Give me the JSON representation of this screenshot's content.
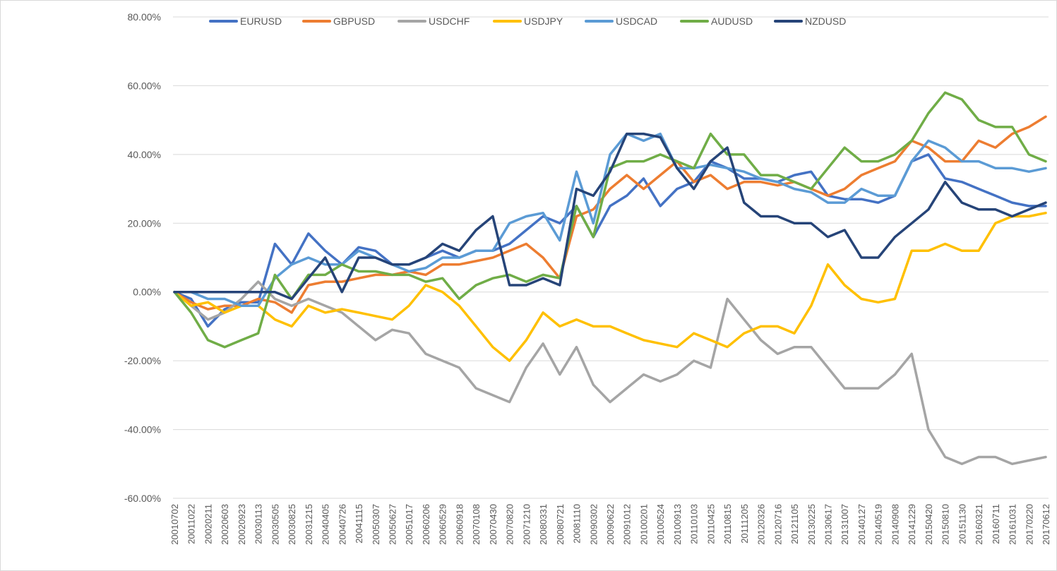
{
  "chart_data": {
    "type": "line",
    "title": "",
    "xlabel": "",
    "ylabel": "",
    "ylim": [
      -60,
      80
    ],
    "y_ticks": [
      "-60.00%",
      "-40.00%",
      "-20.00%",
      "0.00%",
      "20.00%",
      "40.00%",
      "60.00%",
      "80.00%"
    ],
    "y_tick_values": [
      -60,
      -40,
      -20,
      0,
      20,
      40,
      60,
      80
    ],
    "grid": true,
    "legend_placement": "top",
    "x": [
      "20010702",
      "20011022",
      "20020211",
      "20020603",
      "20020923",
      "20030113",
      "20030505",
      "20030825",
      "20031215",
      "20040405",
      "20040726",
      "20041115",
      "20050307",
      "20050627",
      "20051017",
      "20060206",
      "20060529",
      "20060918",
      "20070108",
      "20070430",
      "20070820",
      "20071210",
      "20080331",
      "20080721",
      "20081110",
      "20090302",
      "20090622",
      "20091012",
      "20100201",
      "20100524",
      "20100913",
      "20110103",
      "20110425",
      "20110815",
      "20111205",
      "20120326",
      "20120716",
      "20121105",
      "20130225",
      "20130617",
      "20131007",
      "20140127",
      "20140519",
      "20140908",
      "20141229",
      "20150420",
      "20150810",
      "20151130",
      "20160321",
      "20160711",
      "20161031",
      "20170220",
      "20170612"
    ],
    "series": [
      {
        "name": "EURUSD",
        "color": "#4472C4",
        "values": [
          0,
          -2,
          -10,
          -5,
          -3,
          -3,
          14,
          8,
          17,
          12,
          8,
          13,
          12,
          8,
          8,
          10,
          12,
          10,
          12,
          12,
          14,
          18,
          22,
          20,
          25,
          16,
          25,
          28,
          33,
          25,
          30,
          32,
          38,
          36,
          33,
          33,
          32,
          34,
          35,
          28,
          27,
          27,
          26,
          28,
          38,
          40,
          33,
          32,
          30,
          28,
          26,
          25,
          25
        ]
      },
      {
        "name": "GBPUSD",
        "color": "#ED7D31",
        "values": [
          0,
          -3,
          -5,
          -4,
          -4,
          -2,
          -3,
          -6,
          2,
          3,
          3,
          4,
          5,
          5,
          6,
          5,
          8,
          8,
          9,
          10,
          12,
          14,
          10,
          4,
          22,
          24,
          30,
          34,
          30,
          34,
          38,
          32,
          34,
          30,
          32,
          32,
          31,
          32,
          30,
          28,
          30,
          34,
          36,
          38,
          44,
          42,
          38,
          38,
          44,
          42,
          46,
          48,
          51
        ]
      },
      {
        "name": "USDCHF",
        "color": "#A5A5A5",
        "values": [
          0,
          -4,
          -8,
          -6,
          -2,
          3,
          -2,
          -4,
          -2,
          -4,
          -6,
          -10,
          -14,
          -11,
          -12,
          -18,
          -20,
          -22,
          -28,
          -30,
          -32,
          -22,
          -15,
          -24,
          -16,
          -27,
          -32,
          -28,
          -24,
          -26,
          -24,
          -20,
          -22,
          -2,
          -8,
          -14,
          -18,
          -16,
          -16,
          -22,
          -28,
          -28,
          -28,
          -24,
          -18,
          -40,
          -48,
          -50,
          -48,
          -48,
          -50,
          -49,
          -48
        ]
      },
      {
        "name": "USDJPY",
        "color": "#FFC000",
        "values": [
          0,
          -4,
          -3,
          -6,
          -4,
          -4,
          -8,
          -10,
          -4,
          -6,
          -5,
          -6,
          -7,
          -8,
          -4,
          2,
          0,
          -4,
          -10,
          -16,
          -20,
          -14,
          -6,
          -10,
          -8,
          -10,
          -10,
          -12,
          -14,
          -15,
          -16,
          -12,
          -14,
          -16,
          -12,
          -10,
          -10,
          -12,
          -4,
          8,
          2,
          -2,
          -3,
          -2,
          12,
          12,
          14,
          12,
          12,
          20,
          22,
          22,
          23
        ]
      },
      {
        "name": "USDCAD",
        "color": "#5B9BD5",
        "values": [
          0,
          0,
          -2,
          -2,
          -4,
          -4,
          4,
          8,
          10,
          8,
          8,
          12,
          10,
          8,
          6,
          7,
          10,
          10,
          12,
          12,
          20,
          22,
          23,
          15,
          35,
          20,
          40,
          46,
          44,
          46,
          36,
          36,
          37,
          36,
          35,
          33,
          32,
          30,
          29,
          26,
          26,
          30,
          28,
          28,
          38,
          44,
          42,
          38,
          38,
          36,
          36,
          35,
          36
        ]
      },
      {
        "name": "AUDUSD",
        "color": "#70AD47",
        "values": [
          0,
          -6,
          -14,
          -16,
          -14,
          -12,
          5,
          -2,
          5,
          5,
          8,
          6,
          6,
          5,
          5,
          3,
          4,
          -2,
          2,
          4,
          5,
          3,
          5,
          4,
          25,
          16,
          36,
          38,
          38,
          40,
          38,
          36,
          46,
          40,
          40,
          34,
          34,
          32,
          30,
          36,
          42,
          38,
          38,
          40,
          44,
          52,
          58,
          56,
          50,
          48,
          48,
          40,
          38
        ]
      },
      {
        "name": "NZDUSD",
        "color": "#264478",
        "values": [
          0,
          0,
          0,
          0,
          0,
          0,
          0,
          -2,
          4,
          10,
          0,
          10,
          10,
          8,
          8,
          10,
          14,
          12,
          18,
          22,
          2,
          2,
          4,
          2,
          30,
          28,
          35,
          46,
          46,
          45,
          36,
          30,
          38,
          42,
          26,
          22,
          22,
          20,
          20,
          16,
          18,
          10,
          10,
          16,
          20,
          24,
          32,
          26,
          24,
          24,
          22,
          24,
          26
        ]
      }
    ]
  }
}
